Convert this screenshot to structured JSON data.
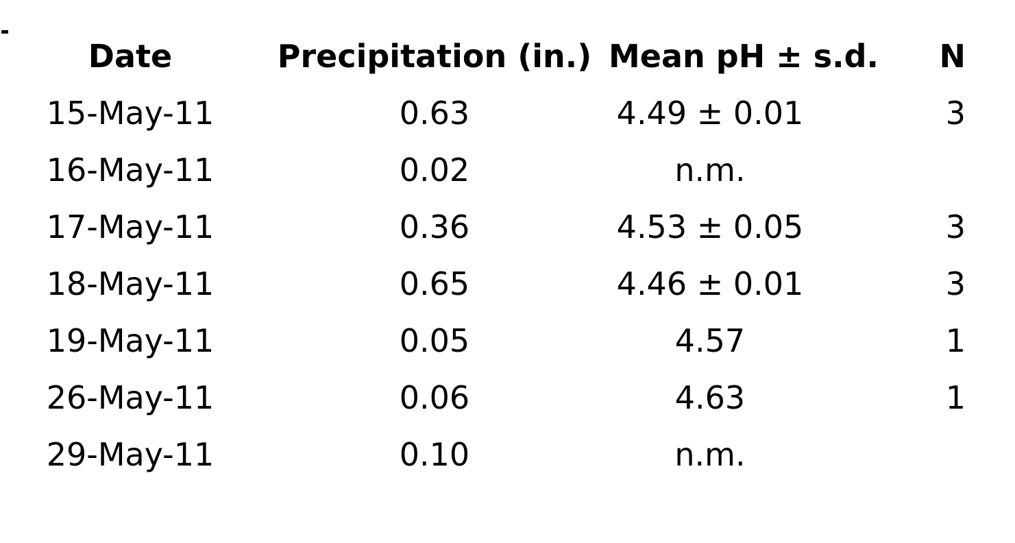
{
  "page": {
    "background_color": "#ffffff",
    "text_color": "#000000"
  },
  "table": {
    "headers": {
      "date": "Date",
      "precipitation": "Precipitation (in.)",
      "mean_ph": "Mean pH ± s.d.",
      "n": "N"
    },
    "rows": [
      {
        "date": "15-May-11",
        "precipitation": "0.63",
        "mean_ph": "4.49 ± 0.01",
        "n": "3"
      },
      {
        "date": "16-May-11",
        "precipitation": "0.02",
        "mean_ph": "n.m.",
        "n": ""
      },
      {
        "date": "17-May-11",
        "precipitation": "0.36",
        "mean_ph": "4.53 ± 0.05",
        "n": "3"
      },
      {
        "date": "18-May-11",
        "precipitation": "0.65",
        "mean_ph": "4.46 ± 0.01",
        "n": "3"
      },
      {
        "date": "19-May-11",
        "precipitation": "0.05",
        "mean_ph": "4.57",
        "n": "1"
      },
      {
        "date": "26-May-11",
        "precipitation": "0.06",
        "mean_ph": "4.63",
        "n": "1"
      },
      {
        "date": "29-May-11",
        "precipitation": "0.10",
        "mean_ph": "n.m.",
        "n": ""
      }
    ]
  }
}
